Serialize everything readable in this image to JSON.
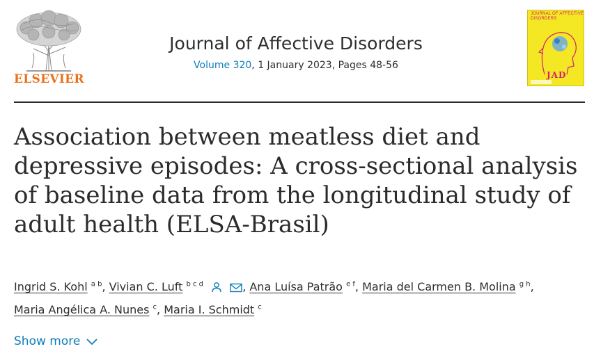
{
  "publisher": {
    "name": "ELSEVIER",
    "logo_icon": "elsevier-tree-icon"
  },
  "journal": {
    "title": "Journal of Affective Disorders",
    "volume_label": "Volume 320",
    "issue_info": ", 1 January 2023, Pages 48-56"
  },
  "cover": {
    "title_lines": "JOURNAL OF AFFECTIVE DISORDERS",
    "abbr": "JAD",
    "color": "#f4e723",
    "accent": "#d6226b"
  },
  "article": {
    "title": "Association between meatless diet and depressive episodes: A cross-sectional analysis of baseline data from the longitudinal study of adult health (ELSA-Brasil)"
  },
  "authors": [
    {
      "name": "Ingrid S. Kohl",
      "affil": "a b"
    },
    {
      "name": "Vivian C. Luft",
      "affil": "b c d",
      "icons": [
        "person-icon",
        "envelope-icon"
      ]
    },
    {
      "name": "Ana Luísa Patrão",
      "affil": "e f"
    },
    {
      "name": "Maria del Carmen B. Molina",
      "affil": "g h"
    },
    {
      "name": "Maria Angélica A. Nunes",
      "affil": "c"
    },
    {
      "name": "Maria I. Schmidt",
      "affil": "c"
    }
  ],
  "show_more": {
    "label": "Show more",
    "icon": "chevron-down-icon"
  },
  "colors": {
    "link": "#0c7dbb",
    "brand": "#e9711c"
  }
}
